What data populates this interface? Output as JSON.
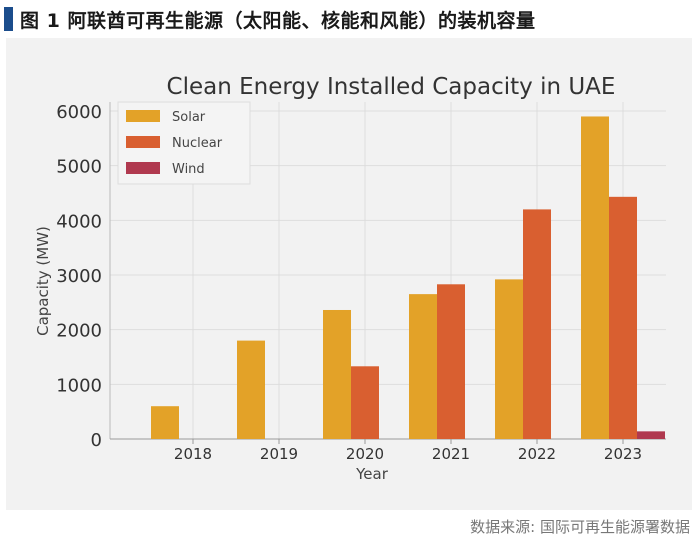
{
  "figure": {
    "title": "图 1  阿联酋可再生能源（太阳能、核能和风能）的装机容量",
    "source": "数据来源: 国际可再生能源署数据"
  },
  "colors": {
    "header_marker": "#1b4d8c",
    "panel_bg": "#f2f2f2",
    "solar": "#e3a228",
    "nuclear": "#d95f30",
    "wind": "#b0394f"
  },
  "chart_data": {
    "type": "bar",
    "title": "Clean Energy Installed Capacity in UAE",
    "xlabel": "Year",
    "ylabel": "Capacity (MW)",
    "categories": [
      "2018",
      "2019",
      "2020",
      "2021",
      "2022",
      "2023"
    ],
    "series": [
      {
        "name": "Solar",
        "color": "#e3a228",
        "values": [
          600,
          1800,
          2360,
          2650,
          2920,
          5900
        ]
      },
      {
        "name": "Nuclear",
        "color": "#d95f30",
        "values": [
          0,
          0,
          1330,
          2830,
          4200,
          4430
        ]
      },
      {
        "name": "Wind",
        "color": "#b0394f",
        "values": [
          0,
          0,
          0,
          0,
          0,
          140
        ]
      }
    ],
    "ylim": [
      0,
      6000
    ],
    "yticks": [
      "0",
      "1000",
      "2000",
      "3000",
      "4000",
      "5000",
      "6000"
    ],
    "grid": true,
    "legend": "top-left"
  }
}
